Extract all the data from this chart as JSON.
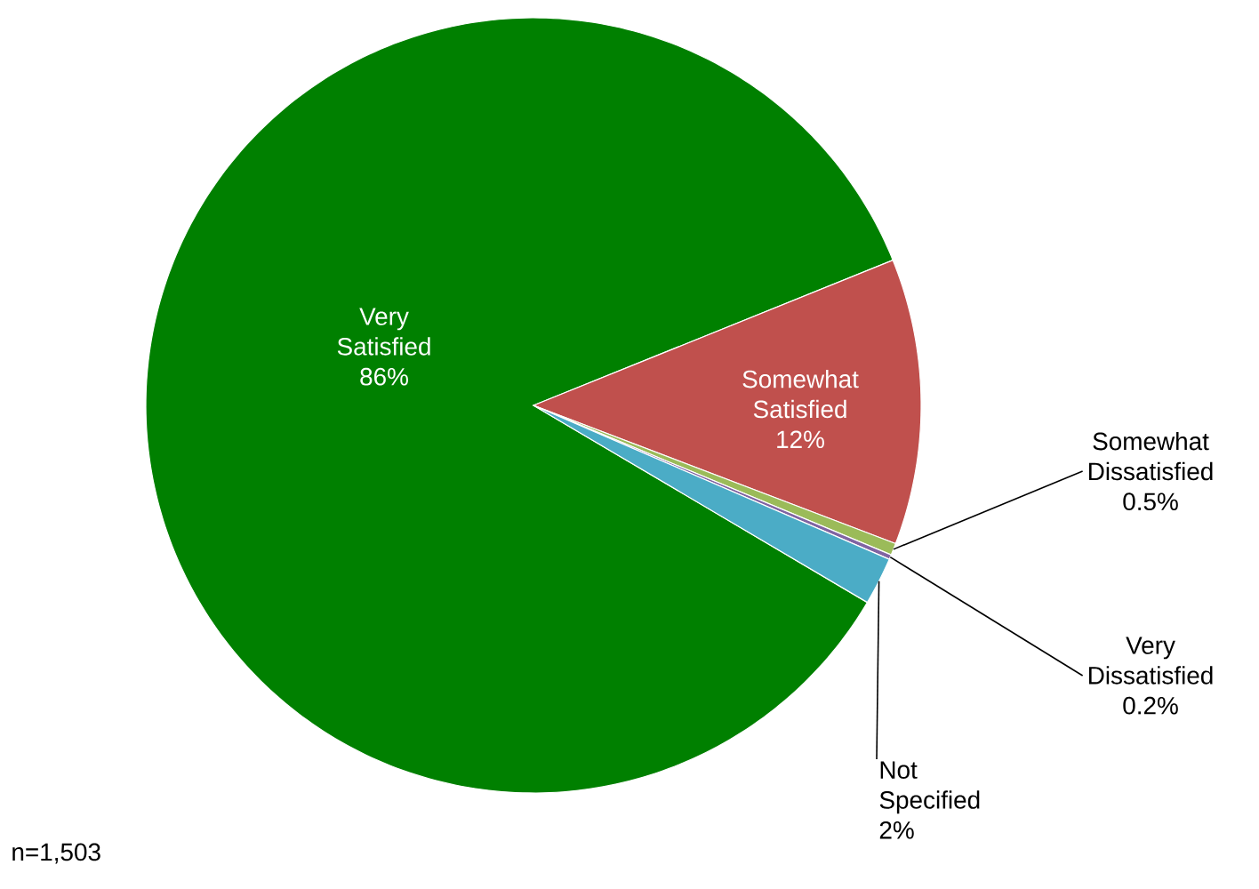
{
  "chart_data": {
    "type": "pie",
    "categories": [
      "Very Satisfied",
      "Somewhat Satisfied",
      "Somewhat Dissatisfied",
      "Very Dissatisfied",
      "Not Specified"
    ],
    "values": [
      86,
      12,
      0.5,
      0.2,
      2
    ],
    "colors": [
      "#008000",
      "#c0504d",
      "#9bbb59",
      "#8064a2",
      "#4bacc6"
    ],
    "value_labels": [
      "86%",
      "12%",
      "0.5%",
      "0.2%",
      "2%"
    ],
    "annotations": [
      "n=1,503"
    ]
  }
}
